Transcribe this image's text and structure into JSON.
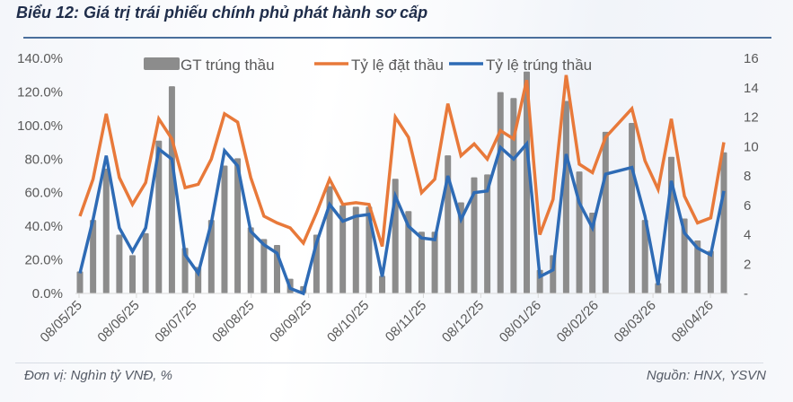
{
  "title": "Biểu 12: Giá trị trái phiếu chính phủ phát hành sơ cấp",
  "footer": {
    "unit": "Đơn vị: Nghìn tỷ VNĐ, %",
    "source": "Nguồn: HNX, YSVN"
  },
  "colors": {
    "bar": "#8c8c8c",
    "bid_ratio": "#e8793a",
    "win_ratio": "#2e6bb5",
    "rule": "#4a6f9c"
  },
  "chart_data": {
    "type": "bar+line",
    "title": "Biểu 12: Giá trị trái phiếu chính phủ phát hành sơ cấp",
    "xlabel": "",
    "ylabel_left": "%",
    "ylabel_right": "Nghìn tỷ VNĐ",
    "ylim_left": [
      0,
      140
    ],
    "ylim_right": [
      0,
      16
    ],
    "left_ticks": [
      "0.0%",
      "20.0%",
      "40.0%",
      "60.0%",
      "80.0%",
      "100.0%",
      "120.0%",
      "140.0%"
    ],
    "right_ticks": [
      "-",
      "2",
      "4",
      "6",
      "8",
      "10",
      "12",
      "14",
      "16"
    ],
    "x_tick_labels": [
      "08/05/25",
      "08/06/25",
      "08/07/25",
      "08/08/25",
      "08/09/25",
      "08/10/25",
      "08/11/25",
      "08/12/25",
      "08/01/26",
      "08/02/26",
      "08/03/26",
      "08/04/26"
    ],
    "legend": [
      "GT trúng thầu",
      "Tỷ lệ đặt thầu",
      "Tỷ lệ trúng thầu"
    ],
    "legend_position": "top",
    "grid": false,
    "series": [
      {
        "name": "GT trúng thầu",
        "type": "bar",
        "axis": "right",
        "values": [
          1.5,
          5.0,
          8.5,
          4.0,
          2.6,
          4.1,
          10.4,
          14.1,
          3.1,
          1.8,
          5.0,
          8.7,
          9.2,
          4.5,
          3.7,
          3.3,
          1.0,
          0.5,
          4.0,
          7.3,
          6.0,
          5.9,
          5.9,
          1.2,
          7.8,
          5.6,
          4.2,
          4.2,
          9.4,
          6.2,
          7.9,
          8.1,
          13.7,
          13.3,
          15.1,
          1.6,
          2.6,
          13.1,
          8.3,
          5.5,
          11.0,
          null,
          11.6,
          5.0,
          0.7,
          9.3,
          5.1,
          3.6,
          2.9,
          9.6
        ]
      },
      {
        "name": "Tỷ lệ đặt thầu",
        "type": "line",
        "axis": "left",
        "values": [
          46,
          68,
          107,
          69,
          53,
          66,
          104,
          92,
          63,
          65,
          80,
          107,
          102,
          69,
          46,
          42,
          39,
          30,
          48,
          68,
          53,
          54,
          53,
          28,
          105,
          93,
          60,
          68,
          113,
          82,
          89,
          80,
          97,
          92,
          127,
          35,
          56,
          130,
          77,
          72,
          93,
          null,
          110,
          79,
          62,
          104,
          58,
          42,
          45,
          90
        ]
      },
      {
        "name": "Tỷ lệ trúng thầu",
        "type": "line",
        "axis": "left",
        "values": [
          12,
          44,
          82,
          39,
          25,
          39,
          86,
          80,
          23,
          12,
          42,
          85,
          76,
          37,
          29,
          24,
          3,
          0,
          30,
          53,
          43,
          46,
          47,
          10,
          58,
          40,
          33,
          32,
          70,
          44,
          60,
          61,
          87,
          80,
          89,
          10,
          14,
          83,
          54,
          39,
          71,
          null,
          75,
          46,
          5,
          67,
          36,
          27,
          23,
          61
        ]
      }
    ]
  }
}
